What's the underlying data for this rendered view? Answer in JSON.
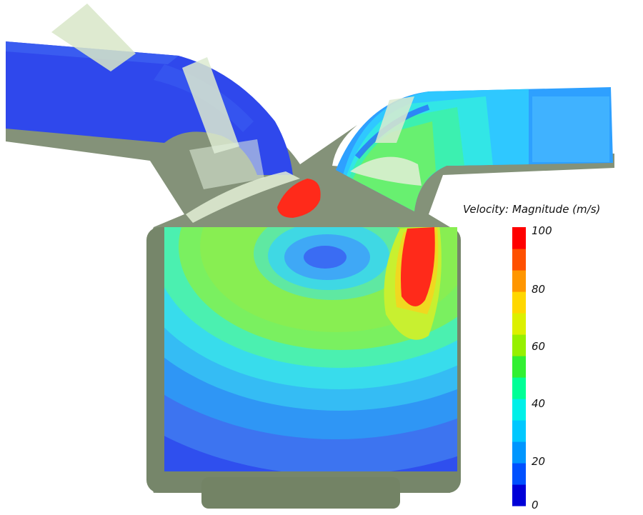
{
  "legend": {
    "title": "Velocity: Magnitude (m/s)",
    "ticks": [
      "100",
      "80",
      "60",
      "40",
      "20",
      "0"
    ],
    "min": 0,
    "max": 100,
    "colors": [
      "#0000d8",
      "#0050ff",
      "#0096ff",
      "#00c8ff",
      "#00f0e8",
      "#00ff96",
      "#32f032",
      "#96f000",
      "#dcf000",
      "#ffd700",
      "#ff9600",
      "#ff5000",
      "#ff0000"
    ]
  },
  "colors": {
    "body_outline": "#6f7f62",
    "valve": "#d9e8cc",
    "low_velocity": "#3050ee",
    "high_velocity": "#ff2a1a"
  }
}
